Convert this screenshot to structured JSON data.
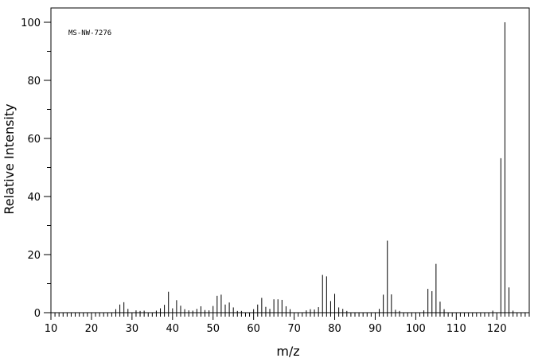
{
  "chart_data": {
    "type": "bar",
    "annotation": "MS-NW-7276",
    "xlabel": "m/z",
    "ylabel": "Relative Intensity",
    "xlim": [
      10,
      128
    ],
    "ylim": [
      0,
      100
    ],
    "xticks": [
      10,
      20,
      30,
      40,
      50,
      60,
      70,
      80,
      90,
      100,
      110,
      120
    ],
    "yticks": [
      0,
      20,
      40,
      60,
      80,
      100
    ],
    "grid": false,
    "peaks": [
      {
        "x": 26,
        "y": 1.2
      },
      {
        "x": 27,
        "y": 2.8
      },
      {
        "x": 28,
        "y": 3.6
      },
      {
        "x": 29,
        "y": 1.3
      },
      {
        "x": 31,
        "y": 0.8
      },
      {
        "x": 32,
        "y": 0.6
      },
      {
        "x": 33,
        "y": 0.7
      },
      {
        "x": 36,
        "y": 0.7
      },
      {
        "x": 37,
        "y": 1.5
      },
      {
        "x": 38,
        "y": 2.7
      },
      {
        "x": 39,
        "y": 7.2
      },
      {
        "x": 40,
        "y": 1.5
      },
      {
        "x": 41,
        "y": 4.3
      },
      {
        "x": 42,
        "y": 2.4
      },
      {
        "x": 43,
        "y": 1.2
      },
      {
        "x": 44,
        "y": 0.8
      },
      {
        "x": 45,
        "y": 0.7
      },
      {
        "x": 46,
        "y": 1.3
      },
      {
        "x": 47,
        "y": 2.2
      },
      {
        "x": 48,
        "y": 0.9
      },
      {
        "x": 49,
        "y": 0.8
      },
      {
        "x": 50,
        "y": 2.3
      },
      {
        "x": 51,
        "y": 5.8
      },
      {
        "x": 52,
        "y": 6.2
      },
      {
        "x": 53,
        "y": 2.8
      },
      {
        "x": 54,
        "y": 3.5
      },
      {
        "x": 55,
        "y": 1.8
      },
      {
        "x": 56,
        "y": 0.6
      },
      {
        "x": 57,
        "y": 0.6
      },
      {
        "x": 60,
        "y": 1.2
      },
      {
        "x": 61,
        "y": 2.8
      },
      {
        "x": 62,
        "y": 5.1
      },
      {
        "x": 63,
        "y": 2.0
      },
      {
        "x": 64,
        "y": 1.3
      },
      {
        "x": 65,
        "y": 4.6
      },
      {
        "x": 66,
        "y": 4.6
      },
      {
        "x": 67,
        "y": 4.4
      },
      {
        "x": 68,
        "y": 2.2
      },
      {
        "x": 69,
        "y": 1.2
      },
      {
        "x": 73,
        "y": 0.8
      },
      {
        "x": 74,
        "y": 1.2
      },
      {
        "x": 75,
        "y": 1.1
      },
      {
        "x": 76,
        "y": 1.9
      },
      {
        "x": 77,
        "y": 13.0
      },
      {
        "x": 78,
        "y": 12.5
      },
      {
        "x": 79,
        "y": 4.0
      },
      {
        "x": 80,
        "y": 6.5
      },
      {
        "x": 81,
        "y": 1.8
      },
      {
        "x": 82,
        "y": 1.3
      },
      {
        "x": 83,
        "y": 0.6
      },
      {
        "x": 91,
        "y": 1.3
      },
      {
        "x": 92,
        "y": 6.2
      },
      {
        "x": 93,
        "y": 24.8
      },
      {
        "x": 94,
        "y": 6.3
      },
      {
        "x": 95,
        "y": 1.0
      },
      {
        "x": 96,
        "y": 0.6
      },
      {
        "x": 102,
        "y": 0.8
      },
      {
        "x": 103,
        "y": 8.2
      },
      {
        "x": 104,
        "y": 7.4
      },
      {
        "x": 105,
        "y": 16.8
      },
      {
        "x": 106,
        "y": 3.8
      },
      {
        "x": 107,
        "y": 1.2
      },
      {
        "x": 119,
        "y": 0.7
      },
      {
        "x": 121,
        "y": 53.2
      },
      {
        "x": 122,
        "y": 100.0
      },
      {
        "x": 123,
        "y": 8.7
      },
      {
        "x": 124,
        "y": 0.7
      }
    ]
  }
}
